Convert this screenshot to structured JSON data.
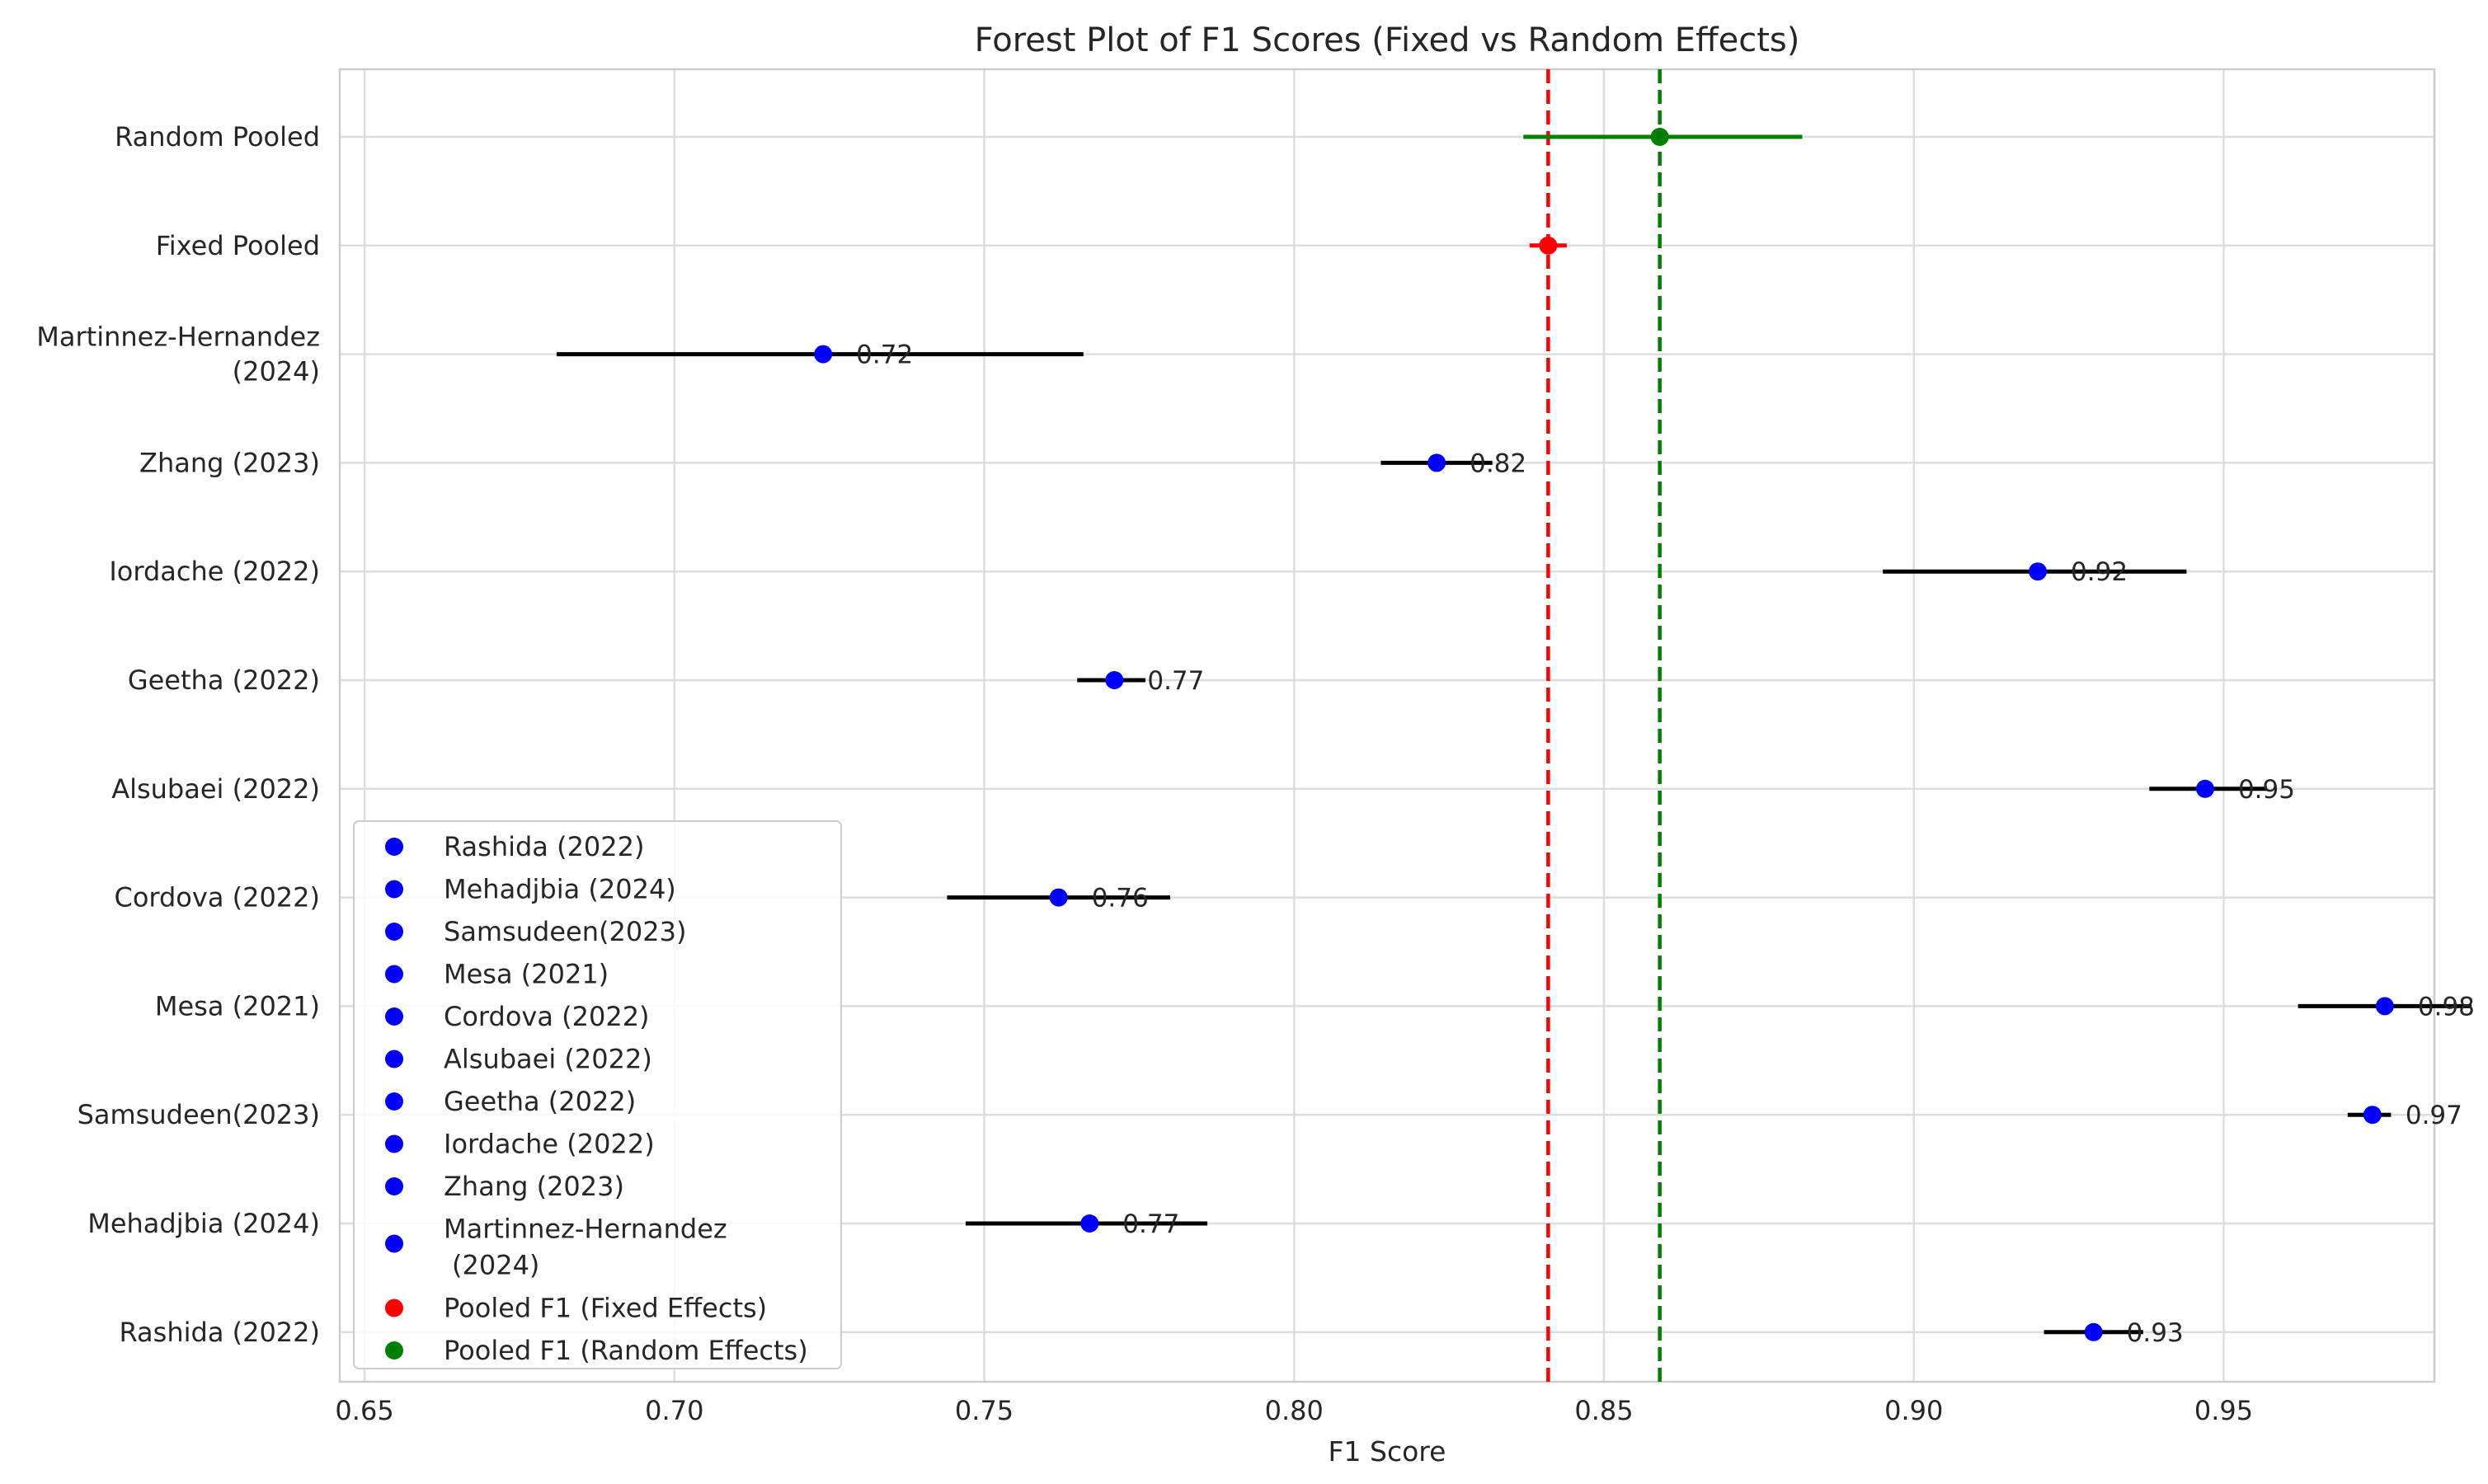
{
  "chart_data": {
    "type": "forest",
    "title": "Forest Plot of F1 Scores (Fixed vs Random Effects)",
    "xlabel": "F1 Score",
    "ylabel": "",
    "xlim": [
      0.646,
      0.984
    ],
    "xticks": [
      0.65,
      0.7,
      0.75,
      0.8,
      0.85,
      0.9,
      0.95
    ],
    "xtick_labels": [
      "0.65",
      "0.70",
      "0.75",
      "0.80",
      "0.85",
      "0.90",
      "0.95"
    ],
    "grid": true,
    "studies": [
      {
        "label": "Random Pooled",
        "value": 0.859,
        "ci": [
          0.837,
          0.882
        ],
        "value_label": "",
        "color": "#008000"
      },
      {
        "label": "Fixed Pooled",
        "value": 0.841,
        "ci": [
          0.838,
          0.844
        ],
        "value_label": "",
        "color": "#ff0000"
      },
      {
        "label": "Martinnez-Hernandez\n(2024)",
        "value": 0.724,
        "ci": [
          0.681,
          0.766
        ],
        "value_label": "0.72",
        "color": "#0000ff"
      },
      {
        "label": "Zhang (2023)",
        "value": 0.823,
        "ci": [
          0.814,
          0.832
        ],
        "value_label": "0.82",
        "color": "#0000ff"
      },
      {
        "label": "Iordache (2022)",
        "value": 0.92,
        "ci": [
          0.895,
          0.944
        ],
        "value_label": "0.92",
        "color": "#0000ff"
      },
      {
        "label": "Geetha (2022)",
        "value": 0.771,
        "ci": [
          0.765,
          0.776
        ],
        "value_label": "0.77",
        "color": "#0000ff"
      },
      {
        "label": "Alsubaei (2022)",
        "value": 0.947,
        "ci": [
          0.938,
          0.957
        ],
        "value_label": "0.95",
        "color": "#0000ff"
      },
      {
        "label": "Cordova (2022)",
        "value": 0.762,
        "ci": [
          0.744,
          0.78
        ],
        "value_label": "0.76",
        "color": "#0000ff"
      },
      {
        "label": "Mesa (2021)",
        "value": 0.976,
        "ci": [
          0.962,
          0.99
        ],
        "value_label": "0.98",
        "color": "#0000ff"
      },
      {
        "label": "Samsudeen(2023)",
        "value": 0.974,
        "ci": [
          0.97,
          0.977
        ],
        "value_label": "0.97",
        "color": "#0000ff"
      },
      {
        "label": "Mehadjbia (2024)",
        "value": 0.767,
        "ci": [
          0.747,
          0.786
        ],
        "value_label": "0.77",
        "color": "#0000ff"
      },
      {
        "label": "Rashida (2022)",
        "value": 0.929,
        "ci": [
          0.921,
          0.937
        ],
        "value_label": "0.93",
        "color": "#0000ff"
      }
    ],
    "reference_lines": [
      {
        "value": 0.841,
        "color": "#ff0000",
        "style": "dashed"
      },
      {
        "value": 0.859,
        "color": "#008000",
        "style": "dashed"
      }
    ],
    "legend": {
      "placement": "lower-left",
      "entries": [
        {
          "label": "Rashida (2022)",
          "color": "#0000ff"
        },
        {
          "label": "Mehadjbia (2024)",
          "color": "#0000ff"
        },
        {
          "label": "Samsudeen(2023)",
          "color": "#0000ff"
        },
        {
          "label": "Mesa (2021)",
          "color": "#0000ff"
        },
        {
          "label": "Cordova (2022)",
          "color": "#0000ff"
        },
        {
          "label": "Alsubaei (2022)",
          "color": "#0000ff"
        },
        {
          "label": "Geetha (2022)",
          "color": "#0000ff"
        },
        {
          "label": "Iordache (2022)",
          "color": "#0000ff"
        },
        {
          "label": "Zhang (2023)",
          "color": "#0000ff"
        },
        {
          "label": "Martinnez-Hernandez\n(2024)",
          "color": "#0000ff"
        },
        {
          "label": "Pooled F1 (Fixed Effects)",
          "color": "#ff0000"
        },
        {
          "label": "Pooled F1 (Random Effects)",
          "color": "#008000"
        }
      ]
    }
  }
}
